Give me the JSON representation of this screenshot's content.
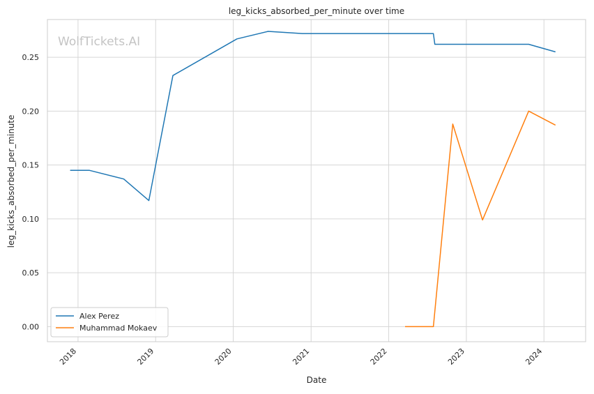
{
  "watermark": "WolfTickets.AI",
  "colors": {
    "background": "#ffffff",
    "grid": "#d6d6d6",
    "frame": "#cccccc",
    "series_1": "#1f77b4",
    "series_2": "#ff7f0e"
  },
  "chart_data": {
    "type": "line",
    "title": "leg_kicks_absorbed_per_minute over time",
    "xlabel": "Date",
    "ylabel": "leg_kicks_absorbed_per_minute",
    "xlim": [
      "2017-08-10",
      "2024-07-15"
    ],
    "ylim": [
      -0.014,
      0.285
    ],
    "x_ticks": [
      "2018",
      "2019",
      "2020",
      "2021",
      "2022",
      "2023",
      "2024"
    ],
    "y_ticks": [
      "0.00",
      "0.05",
      "0.10",
      "0.15",
      "0.20",
      "0.25"
    ],
    "grid": true,
    "legend_position": "lower-left",
    "series": [
      {
        "name": "Alex Perez",
        "color": "#1f77b4",
        "points": [
          {
            "x": "2017-11-25",
            "y": 0.145
          },
          {
            "x": "2018-02-24",
            "y": 0.145
          },
          {
            "x": "2018-08-04",
            "y": 0.137
          },
          {
            "x": "2018-11-30",
            "y": 0.117
          },
          {
            "x": "2019-03-23",
            "y": 0.233
          },
          {
            "x": "2020-01-18",
            "y": 0.267
          },
          {
            "x": "2020-06-13",
            "y": 0.274
          },
          {
            "x": "2020-11-21",
            "y": 0.272
          },
          {
            "x": "2021-06-12",
            "y": 0.272
          },
          {
            "x": "2022-07-30",
            "y": 0.272
          },
          {
            "x": "2022-08-06",
            "y": 0.262
          },
          {
            "x": "2023-10-21",
            "y": 0.262
          },
          {
            "x": "2024-02-24",
            "y": 0.255
          }
        ]
      },
      {
        "name": "Muhammad Mokaev",
        "color": "#ff7f0e",
        "points": [
          {
            "x": "2022-03-19",
            "y": 0.0
          },
          {
            "x": "2022-07-30",
            "y": 0.0
          },
          {
            "x": "2022-10-29",
            "y": 0.188
          },
          {
            "x": "2023-03-18",
            "y": 0.099
          },
          {
            "x": "2023-10-21",
            "y": 0.2
          },
          {
            "x": "2024-02-24",
            "y": 0.187
          }
        ]
      }
    ]
  }
}
